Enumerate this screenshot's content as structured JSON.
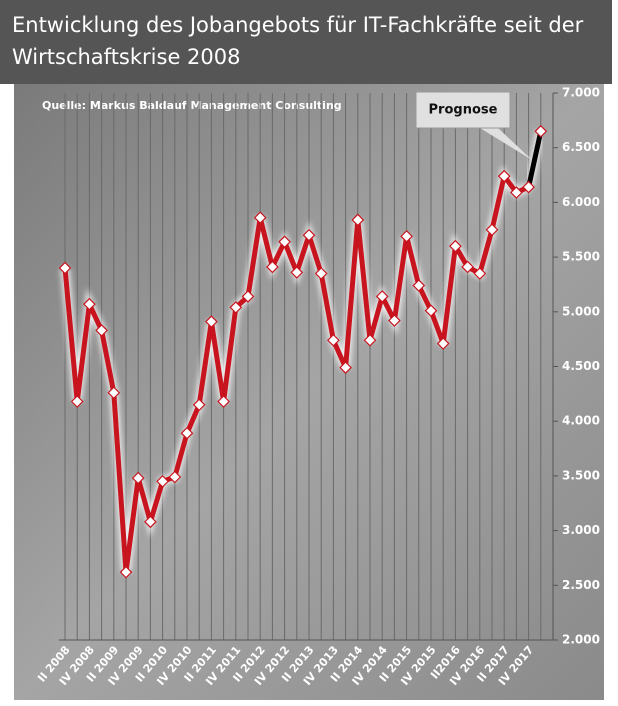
{
  "chart_data": {
    "type": "line",
    "title_lines": [
      "Entwicklung des Jobangebots für IT-Fachkräfte seit der",
      "Wirtschaftskrise 2008"
    ],
    "source": "Quelle: Markus Baldauf Management Consulting",
    "annotation": "Prognose",
    "categories": [
      "II 2008",
      null,
      "IV 2008",
      null,
      "II 2009",
      null,
      "IV 2009",
      null,
      "II 2010",
      null,
      "IV 2010",
      null,
      "II 2011",
      null,
      "IV 2011",
      null,
      "II 2012",
      null,
      "IV 2012",
      null,
      "II 2013",
      null,
      "IV 2013",
      null,
      "II 2014",
      null,
      "IV 2014",
      null,
      "II 2015",
      null,
      "IV 2015",
      null,
      "II2016",
      null,
      "IV 2016",
      null,
      "II 2017",
      null,
      "IV 2017",
      null
    ],
    "series": [
      {
        "color": "#c8141e",
        "values": [
          5400,
          4180,
          5070,
          4830,
          4260,
          2620,
          3480,
          3080,
          3450,
          3490,
          3890,
          4150,
          4910,
          4180,
          5040,
          5140,
          5860,
          5410,
          5640,
          5360,
          5700,
          5350,
          4740,
          4490,
          5840,
          4740,
          5140,
          4920,
          5690,
          5240,
          5010,
          4710,
          5600,
          5410,
          5350,
          5750,
          6240,
          6090,
          6140,
          null
        ]
      },
      {
        "color": "#000000",
        "values": [
          null,
          null,
          null,
          null,
          null,
          null,
          null,
          null,
          null,
          null,
          null,
          null,
          null,
          null,
          null,
          null,
          null,
          null,
          null,
          null,
          null,
          null,
          null,
          null,
          null,
          null,
          null,
          null,
          null,
          null,
          null,
          null,
          null,
          null,
          null,
          null,
          null,
          null,
          6140,
          6650
        ]
      }
    ],
    "ylim": [
      2000,
      7000
    ],
    "yticks": [
      {
        "value": 2000,
        "label": "2.000"
      },
      {
        "value": 2500,
        "label": "2.500"
      },
      {
        "value": 3000,
        "label": "3.000"
      },
      {
        "value": 3500,
        "label": "3.500"
      },
      {
        "value": 4000,
        "label": "4.000"
      },
      {
        "value": 4500,
        "label": "4.500"
      },
      {
        "value": 5000,
        "label": "5.000"
      },
      {
        "value": 5500,
        "label": "5.500"
      },
      {
        "value": 6000,
        "label": "6.000"
      },
      {
        "value": 6500,
        "label": "6.500"
      },
      {
        "value": 7000,
        "label": "7.000"
      }
    ]
  }
}
